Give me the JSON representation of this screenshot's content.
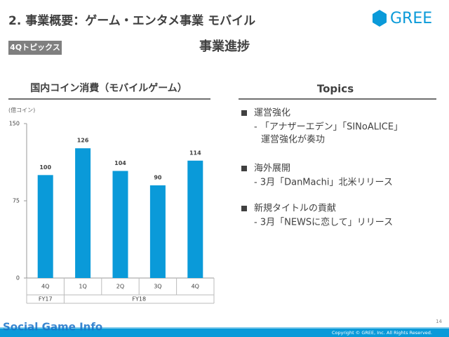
{
  "header": {
    "title": "2. 事業概要：ゲーム・エンタメ事業 モバイル",
    "logo": "GREE",
    "tag": "4Qトピックス",
    "subtitle": "事業進捗"
  },
  "chart_data": {
    "type": "bar",
    "title": "国内コイン消費（モバイルゲーム）",
    "y_label": "(億コイン)",
    "categories": [
      "4Q",
      "1Q",
      "2Q",
      "3Q",
      "4Q"
    ],
    "group_labels": [
      "FY17",
      "FY18"
    ],
    "values": [
      100,
      126,
      104,
      90,
      114
    ],
    "color": "#0a9ad9",
    "ylim": [
      0,
      150
    ],
    "yticks": [
      0,
      75,
      150
    ],
    "grid": false
  },
  "topics": {
    "title": "Topics",
    "items": [
      {
        "heading": "運営強化",
        "lines": [
          "- 「アナザーエデン」「SINoALICE」",
          "運営強化が奏功"
        ]
      },
      {
        "heading": "海外展開",
        "lines": [
          "- 3月「DanMachi」北米リリース"
        ]
      },
      {
        "heading": "新規タイトルの貢献",
        "lines": [
          "- 3月「NEWSに恋して」リリース"
        ]
      }
    ]
  },
  "footer": {
    "page": "14",
    "copyright": "Copyright © GREE, Inc. All Rights Reserved.",
    "watermark": "Social Game Info"
  }
}
